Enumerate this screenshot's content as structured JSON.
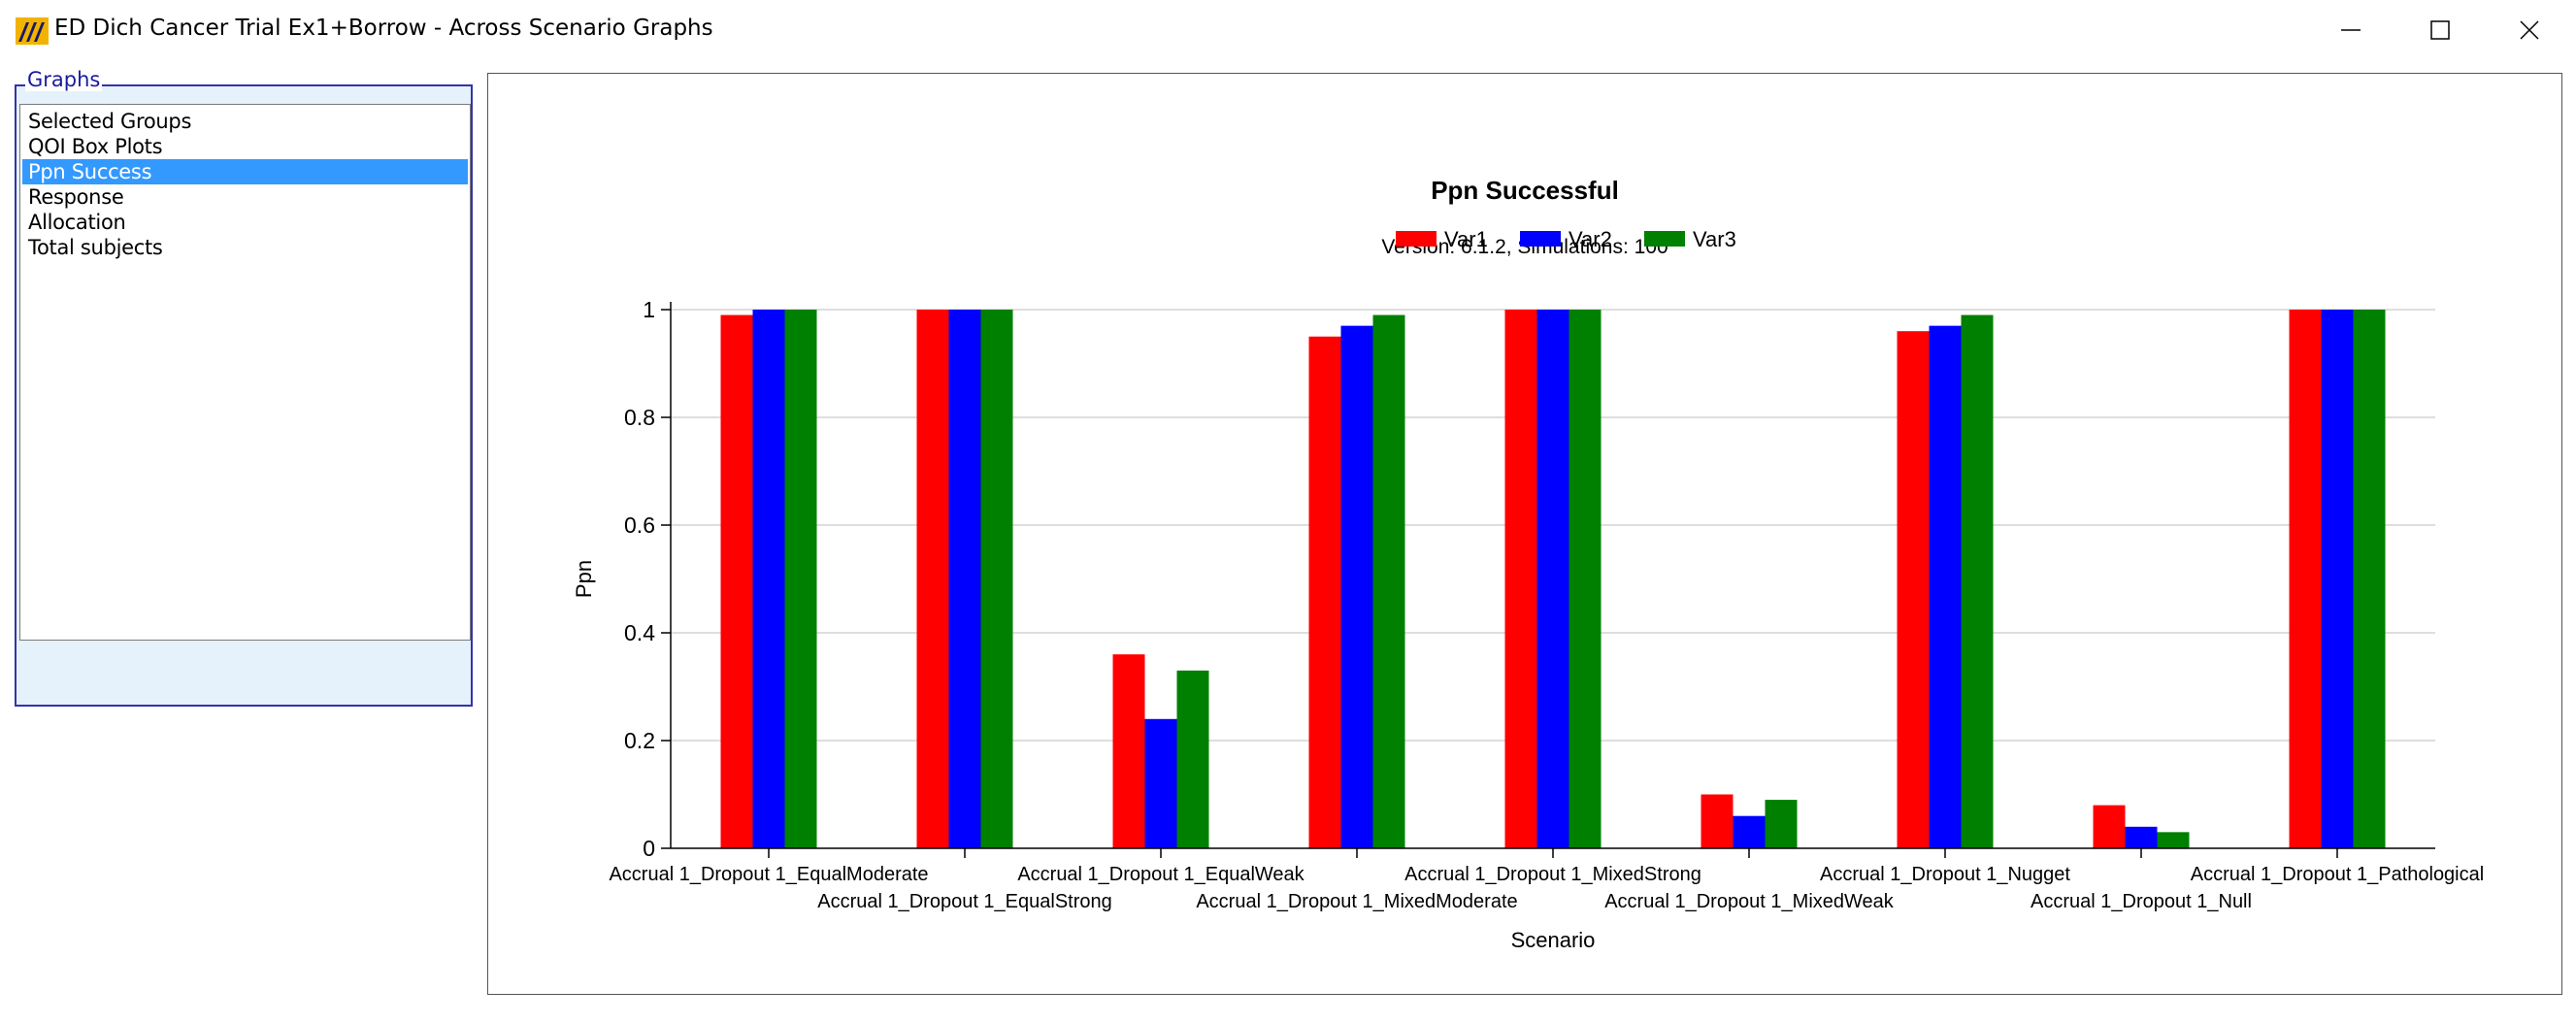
{
  "window": {
    "title": "ED Dich Cancer Trial Ex1+Borrow - Across Scenario Graphs",
    "icon": "app-logo-icon"
  },
  "graphs_panel": {
    "legend": "Graphs",
    "items": [
      {
        "label": "Selected Groups",
        "selected": false
      },
      {
        "label": "QOI Box Plots",
        "selected": false
      },
      {
        "label": "Ppn Success",
        "selected": true
      },
      {
        "label": "Response",
        "selected": false
      },
      {
        "label": "Allocation",
        "selected": false
      },
      {
        "label": "Total subjects",
        "selected": false
      }
    ]
  },
  "chart_data": {
    "type": "bar",
    "title": "Ppn Successful",
    "subtitle": "Version: 6.1.2, Simulations: 100",
    "xlabel": "Scenario",
    "ylabel": "Ppn",
    "ylim": [
      0,
      1
    ],
    "yticks": [
      "0",
      "0.2",
      "0.4",
      "0.6",
      "0.8",
      "1"
    ],
    "grid": true,
    "legend_position": "top-center",
    "categories": [
      "Accrual 1_Dropout 1_EqualModerate",
      "Accrual 1_Dropout 1_EqualStrong",
      "Accrual 1_Dropout 1_EqualWeak",
      "Accrual 1_Dropout 1_MixedModerate",
      "Accrual 1_Dropout 1_MixedStrong",
      "Accrual 1_Dropout 1_MixedWeak",
      "Accrual 1_Dropout 1_Nugget",
      "Accrual 1_Dropout 1_Null",
      "Accrual 1_Dropout 1_Pathological"
    ],
    "series": [
      {
        "name": "Var1",
        "color": "#ff0000",
        "values": [
          0.99,
          1.0,
          0.36,
          0.95,
          1.0,
          0.1,
          0.96,
          0.08,
          1.0
        ]
      },
      {
        "name": "Var2",
        "color": "#0000ff",
        "values": [
          1.0,
          1.0,
          0.24,
          0.97,
          1.0,
          0.06,
          0.97,
          0.04,
          1.0
        ]
      },
      {
        "name": "Var3",
        "color": "#008000",
        "values": [
          1.0,
          1.0,
          0.33,
          0.99,
          1.0,
          0.09,
          0.99,
          0.03,
          1.0
        ]
      }
    ]
  }
}
